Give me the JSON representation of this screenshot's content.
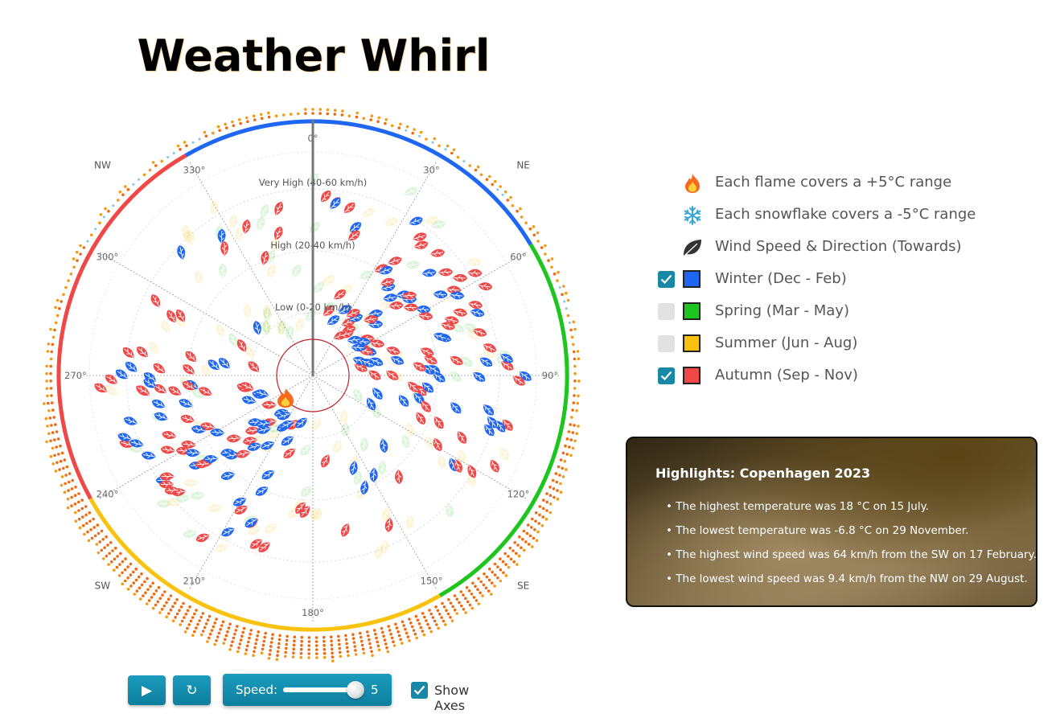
{
  "title": "Weather Whirl",
  "compass": [
    "NW",
    "NE",
    "SW",
    "SE"
  ],
  "degree_labels": [
    "0°",
    "30°",
    "60°",
    "90°",
    "120°",
    "150°",
    "180°",
    "210°",
    "240°",
    "270°",
    "300°",
    "330°"
  ],
  "speed_bands": [
    "Very High (40-60 km/h)",
    "High (20-40 km/h)",
    "Low (0-20 km/h)"
  ],
  "season_colors": {
    "winter": "#1f66f2",
    "spring": "#1ec51e",
    "summer": "#f8c20e",
    "autumn": "#f04747"
  },
  "legend": {
    "flame": "Each flame covers a +5°C range",
    "snow": "Each snowflake covers a -5°C range",
    "wind": "Wind Speed & Direction (Towards)",
    "seasons": [
      {
        "label": "Winter (Dec - Feb)",
        "color": "#1f66f2",
        "checked": true
      },
      {
        "label": "Spring (Mar - May)",
        "color": "#1ec51e",
        "checked": false
      },
      {
        "label": "Summer (Jun - Aug)",
        "color": "#f8c20e",
        "checked": false
      },
      {
        "label": "Autumn (Sep - Nov)",
        "color": "#f04747",
        "checked": true
      }
    ]
  },
  "highlights": {
    "title": "Highlights: Copenhagen 2023",
    "items": [
      "The highest temperature was 18 °C on 15 July.",
      "The lowest temperature was -6.8 °C on 29 November.",
      "The highest wind speed was 64 km/h from the SW on 17 February.",
      "The lowest wind speed was 9.4 km/h from the NW on 29 August."
    ]
  },
  "controls": {
    "speed_label": "Speed:",
    "speed_value": "5",
    "speed_min": 1,
    "speed_max": 5,
    "show_axes_label": "Show Axes",
    "show_axes_checked": true
  }
}
